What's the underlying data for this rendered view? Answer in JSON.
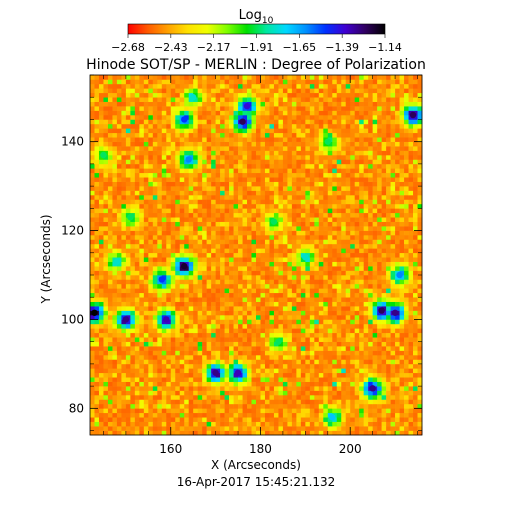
{
  "colorbar": {
    "label": "Log",
    "label_subscript": "10",
    "min": -2.68,
    "max": -1.14,
    "ticks": [
      "-2.68",
      "-2.43",
      "-2.17",
      "-1.91",
      "-1.65",
      "-1.39",
      "-1.14"
    ],
    "colors": [
      "#ff0000",
      "#ff5a00",
      "#ffa000",
      "#ffe000",
      "#f0ff00",
      "#80ff00",
      "#00e000",
      "#00e8a0",
      "#00d8ff",
      "#0090ff",
      "#0030ff",
      "#4000d0",
      "#300060",
      "#000000"
    ]
  },
  "chart_data": {
    "type": "heatmap",
    "title": "Hinode SOT/SP - MERLIN : Degree of Polarization",
    "xlabel": "X (Arcseconds)",
    "ylabel": "Y (Arcseconds)",
    "xlim": [
      142,
      216
    ],
    "ylim": [
      74,
      155
    ],
    "x_ticks": [
      160,
      180,
      200
    ],
    "y_ticks": [
      80,
      100,
      120,
      140
    ],
    "value_units": "log10 degree of polarization",
    "background_level": -2.55,
    "features": [
      {
        "x": 143,
        "y": 101.5,
        "value": -1.14
      },
      {
        "x": 150,
        "y": 100,
        "value": -1.3
      },
      {
        "x": 159,
        "y": 100,
        "value": -1.35
      },
      {
        "x": 163,
        "y": 112,
        "value": -1.2
      },
      {
        "x": 158,
        "y": 109,
        "value": -1.5
      },
      {
        "x": 170,
        "y": 88,
        "value": -1.3
      },
      {
        "x": 175,
        "y": 88,
        "value": -1.35
      },
      {
        "x": 176,
        "y": 144.5,
        "value": -1.25
      },
      {
        "x": 177,
        "y": 148,
        "value": -1.4
      },
      {
        "x": 151,
        "y": 123,
        "value": -1.9
      },
      {
        "x": 183,
        "y": 122,
        "value": -1.9
      },
      {
        "x": 190,
        "y": 114,
        "value": -1.8
      },
      {
        "x": 207,
        "y": 102,
        "value": -1.25
      },
      {
        "x": 210,
        "y": 101.5,
        "value": -1.3
      },
      {
        "x": 214,
        "y": 146,
        "value": -1.25
      },
      {
        "x": 205,
        "y": 84.5,
        "value": -1.3
      },
      {
        "x": 163,
        "y": 145,
        "value": -1.5
      },
      {
        "x": 165,
        "y": 150,
        "value": -1.8
      },
      {
        "x": 145,
        "y": 137,
        "value": -1.9
      },
      {
        "x": 148,
        "y": 113,
        "value": -1.8
      },
      {
        "x": 184,
        "y": 95,
        "value": -1.9
      },
      {
        "x": 195,
        "y": 140,
        "value": -1.9
      },
      {
        "x": 211,
        "y": 110,
        "value": -1.6
      },
      {
        "x": 196,
        "y": 78,
        "value": -1.7
      },
      {
        "x": 164,
        "y": 136,
        "value": -1.6
      }
    ]
  },
  "timestamp": "16-Apr-2017 15:45:21.132"
}
